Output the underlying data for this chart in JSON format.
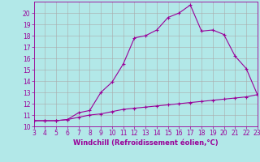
{
  "xlabel": "Windchill (Refroidissement éolien,°C)",
  "bg_color": "#b2e8e8",
  "grid_color": "#aaaaaa",
  "line_color": "#990099",
  "xlim": [
    3,
    23
  ],
  "ylim": [
    10,
    21
  ],
  "xticks": [
    3,
    4,
    5,
    6,
    7,
    8,
    9,
    10,
    11,
    12,
    13,
    14,
    15,
    16,
    17,
    18,
    19,
    20,
    21,
    22,
    23
  ],
  "yticks": [
    10,
    11,
    12,
    13,
    14,
    15,
    16,
    17,
    18,
    19,
    20
  ],
  "curve1_x": [
    3,
    4,
    5,
    6,
    7,
    8,
    9,
    10,
    11,
    12,
    13,
    14,
    15,
    16,
    17,
    18,
    19,
    20,
    21,
    22,
    23
  ],
  "curve1_y": [
    10.5,
    10.5,
    10.5,
    10.6,
    11.2,
    11.4,
    13.0,
    13.9,
    15.5,
    17.8,
    18.0,
    18.5,
    19.6,
    20.0,
    20.7,
    18.4,
    18.5,
    18.1,
    16.2,
    15.1,
    12.8
  ],
  "curve2_x": [
    3,
    4,
    5,
    6,
    7,
    8,
    9,
    10,
    11,
    12,
    13,
    14,
    15,
    16,
    17,
    18,
    19,
    20,
    21,
    22,
    23
  ],
  "curve2_y": [
    10.5,
    10.5,
    10.5,
    10.6,
    10.8,
    11.0,
    11.1,
    11.3,
    11.5,
    11.6,
    11.7,
    11.8,
    11.9,
    12.0,
    12.1,
    12.2,
    12.3,
    12.4,
    12.5,
    12.6,
    12.8
  ],
  "tick_labelsize": 5.5,
  "xlabel_fontsize": 6.0
}
